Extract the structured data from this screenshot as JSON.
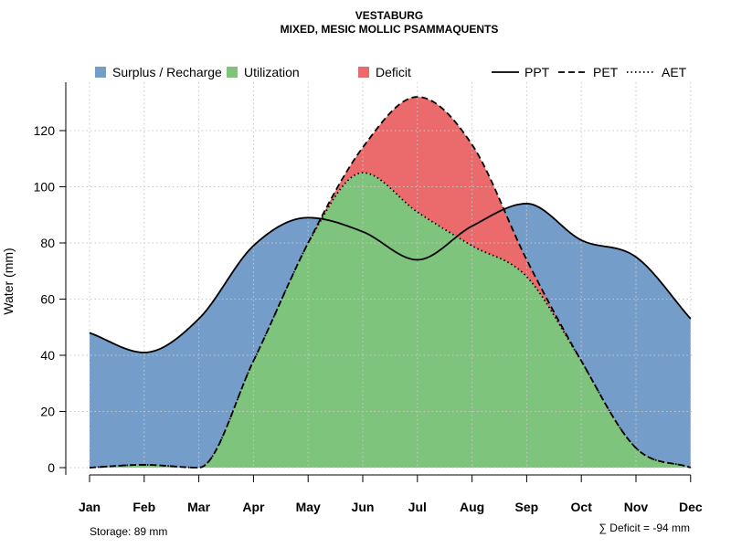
{
  "chart_data": {
    "type": "area",
    "title": "VESTABURG",
    "subtitle": "MIXED, MESIC MOLLIC PSAMMAQUENTS",
    "xlabel": "",
    "ylabel": "Water (mm)",
    "categories": [
      "Jan",
      "Feb",
      "Mar",
      "Apr",
      "May",
      "Jun",
      "Jul",
      "Aug",
      "Sep",
      "Oct",
      "Nov",
      "Dec"
    ],
    "ylim": [
      0,
      137
    ],
    "yticks": [
      0,
      20,
      40,
      60,
      80,
      100,
      120
    ],
    "grid": true,
    "series": [
      {
        "name": "PPT",
        "line": "solid",
        "values": [
          48,
          41,
          53,
          79,
          89,
          84,
          74,
          86,
          94,
          81,
          75,
          53
        ]
      },
      {
        "name": "PET",
        "line": "dashed",
        "values": [
          0,
          1,
          0,
          38,
          80,
          114,
          132,
          115,
          74,
          38,
          7,
          0
        ]
      },
      {
        "name": "AET",
        "line": "dotted",
        "values": [
          0,
          1,
          0,
          38,
          80,
          105,
          91,
          79,
          68,
          38,
          7,
          0
        ]
      }
    ],
    "legend": [
      {
        "label": "Surplus / Recharge",
        "color": "#759DCA",
        "kind": "fill"
      },
      {
        "label": "Utilization",
        "color": "#7FC47C",
        "kind": "fill"
      },
      {
        "label": "Deficit",
        "color": "#EB6A6B",
        "kind": "fill"
      },
      {
        "label": "PPT",
        "kind": "line",
        "style": "solid"
      },
      {
        "label": "PET",
        "kind": "line",
        "style": "dashed"
      },
      {
        "label": "AET",
        "kind": "line",
        "style": "dotted"
      }
    ],
    "legend_position": "top",
    "annotations": {
      "storage": "Storage: 89 mm",
      "deficit": "∑ Deficit = -94 mm"
    }
  }
}
